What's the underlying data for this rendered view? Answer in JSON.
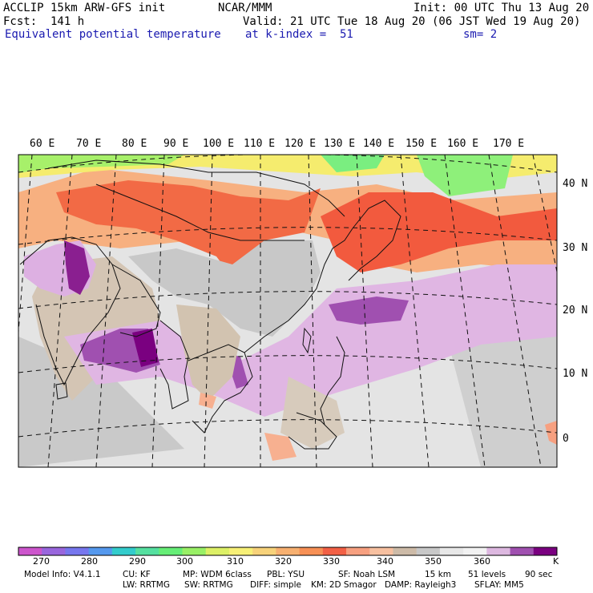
{
  "header": {
    "model": "ACCLIP 15km ARW-GFS init",
    "org": "NCAR/MMM",
    "init": "Init: 00 UTC Thu 13 Aug 20",
    "fcst": "Fcst:  141 h",
    "valid": "Valid: 21 UTC Tue 18 Aug 20 (06 JST Wed 19 Aug 20)",
    "field": "Equivalent potential temperature",
    "level": "at k-index =  51",
    "smooth": "sm= 2"
  },
  "map": {
    "lon_labels": [
      "60 E",
      "70 E",
      "80 E",
      "90 E",
      "100 E",
      "110 E",
      "120 E",
      "130 E",
      "140 E",
      "150 E",
      "160 E",
      "170 E"
    ],
    "lat_labels": [
      "40 N",
      "30 N",
      "20 N",
      "10 N",
      "0"
    ]
  },
  "colorbar": {
    "unit": "K",
    "ticks": [
      "270",
      "280",
      "290",
      "300",
      "310",
      "320",
      "330",
      "340",
      "350",
      "360"
    ],
    "colors": [
      "#cc55cc",
      "#9966dd",
      "#7777ee",
      "#5599ee",
      "#33cccc",
      "#55e0a0",
      "#66ee77",
      "#99f066",
      "#ddf066",
      "#f7f077",
      "#f7d27a",
      "#f7b070",
      "#f79055",
      "#f26045",
      "#f7a080",
      "#f7c0a0",
      "#cdbba8",
      "#c8c8c8",
      "#e8e8e8",
      "#f2f2f2",
      "#ddb8e0",
      "#a050b0",
      "#7a0080"
    ]
  },
  "footer": {
    "line1": [
      "Model Info: V4.1.1",
      "CU: KF",
      "MP: WDM 6class",
      "PBL: YSU",
      "SF: Noah LSM",
      "15 km",
      "51 levels",
      "90 sec"
    ],
    "line2": [
      "LW: RRTMG",
      "SW: RRTMG",
      "DIFF: simple",
      "KM: 2D Smagor",
      "DAMP: Rayleigh3",
      "SFLAY: MM5"
    ]
  }
}
